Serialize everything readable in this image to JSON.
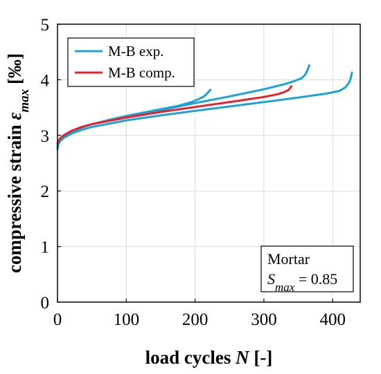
{
  "chart_data": {
    "type": "line",
    "xlabel": {
      "main": "load cycles ",
      "italic": "N",
      "unit": " [-]"
    },
    "ylabel": {
      "main": "compressive strain ",
      "symbol": "ε",
      "sub": "max",
      "unit": " [‰]"
    },
    "xlim": [
      0,
      440
    ],
    "ylim": [
      0,
      5
    ],
    "xticks": [
      0,
      100,
      200,
      300,
      400
    ],
    "yticks": [
      0,
      1,
      2,
      3,
      4,
      5
    ],
    "grid": true,
    "legend": {
      "position": "top-left",
      "entries": [
        {
          "label": "M-B exp.",
          "color": "#1aa3d6"
        },
        {
          "label": "M-B comp.",
          "color": "#e8202a"
        }
      ]
    },
    "annotation": {
      "position": "bottom-right",
      "line1": "Mortar",
      "line2_symbol": "S",
      "line2_sub": "max",
      "line2_value": " = 0.85"
    },
    "series": [
      {
        "legend": "M-B exp.",
        "color": "#1aa3d6",
        "x": [
          0,
          1,
          3,
          6,
          10,
          20,
          35,
          50,
          75,
          100,
          125,
          150,
          175,
          195,
          205,
          213,
          218,
          222
        ],
        "y": [
          2.75,
          2.82,
          2.88,
          2.93,
          2.98,
          3.06,
          3.14,
          3.2,
          3.28,
          3.35,
          3.41,
          3.47,
          3.53,
          3.6,
          3.65,
          3.7,
          3.76,
          3.82
        ]
      },
      {
        "legend": "M-B exp.",
        "color": "#1aa3d6",
        "x": [
          0,
          1,
          3,
          6,
          10,
          20,
          35,
          50,
          100,
          150,
          200,
          250,
          300,
          330,
          345,
          355,
          360,
          363,
          366
        ],
        "y": [
          2.8,
          2.85,
          2.9,
          2.95,
          3.0,
          3.07,
          3.14,
          3.2,
          3.33,
          3.45,
          3.58,
          3.7,
          3.83,
          3.92,
          3.98,
          4.03,
          4.09,
          4.16,
          4.26
        ]
      },
      {
        "legend": "M-B exp.",
        "color": "#1aa3d6",
        "x": [
          0,
          1,
          3,
          6,
          10,
          20,
          35,
          50,
          100,
          150,
          200,
          250,
          300,
          350,
          390,
          410,
          418,
          423,
          426,
          428
        ],
        "y": [
          2.78,
          2.83,
          2.88,
          2.92,
          2.96,
          3.03,
          3.1,
          3.15,
          3.27,
          3.36,
          3.44,
          3.52,
          3.6,
          3.68,
          3.75,
          3.8,
          3.86,
          3.93,
          4.02,
          4.13
        ]
      },
      {
        "legend": "M-B comp.",
        "color": "#e8202a",
        "x": [
          0,
          1,
          3,
          6,
          10,
          20,
          35,
          50,
          100,
          150,
          200,
          250,
          300,
          320,
          330,
          336,
          340
        ],
        "y": [
          2.85,
          2.89,
          2.93,
          2.97,
          3.01,
          3.08,
          3.15,
          3.2,
          3.32,
          3.42,
          3.51,
          3.6,
          3.69,
          3.74,
          3.78,
          3.82,
          3.88
        ]
      }
    ]
  }
}
